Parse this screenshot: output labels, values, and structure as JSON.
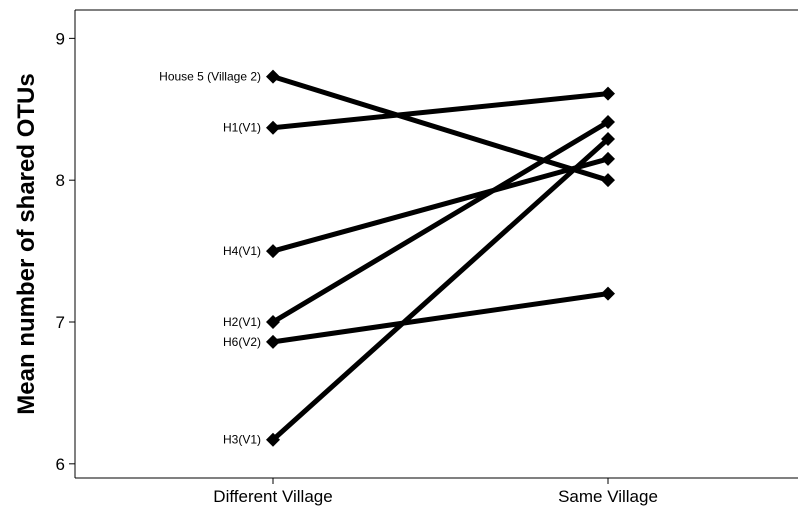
{
  "chart_data": {
    "type": "line",
    "categories": [
      "Different Village",
      "Same Village"
    ],
    "ylabel": "Mean number of shared OTUs",
    "xlabel": "",
    "ylim": [
      5.9,
      9.2
    ],
    "yticks": [
      6,
      7,
      8,
      9
    ],
    "grid": false,
    "series": [
      {
        "name": "House 5 (Village 2)",
        "values": [
          8.73,
          8.0
        ]
      },
      {
        "name": "H1(V1)",
        "values": [
          8.37,
          8.61
        ]
      },
      {
        "name": "H4(V1)",
        "values": [
          7.5,
          8.15
        ]
      },
      {
        "name": "H2(V1)",
        "values": [
          7.0,
          8.41
        ]
      },
      {
        "name": "H6(V2)",
        "values": [
          6.86,
          7.2
        ]
      },
      {
        "name": "H3(V1)",
        "values": [
          6.17,
          8.29
        ]
      }
    ]
  }
}
